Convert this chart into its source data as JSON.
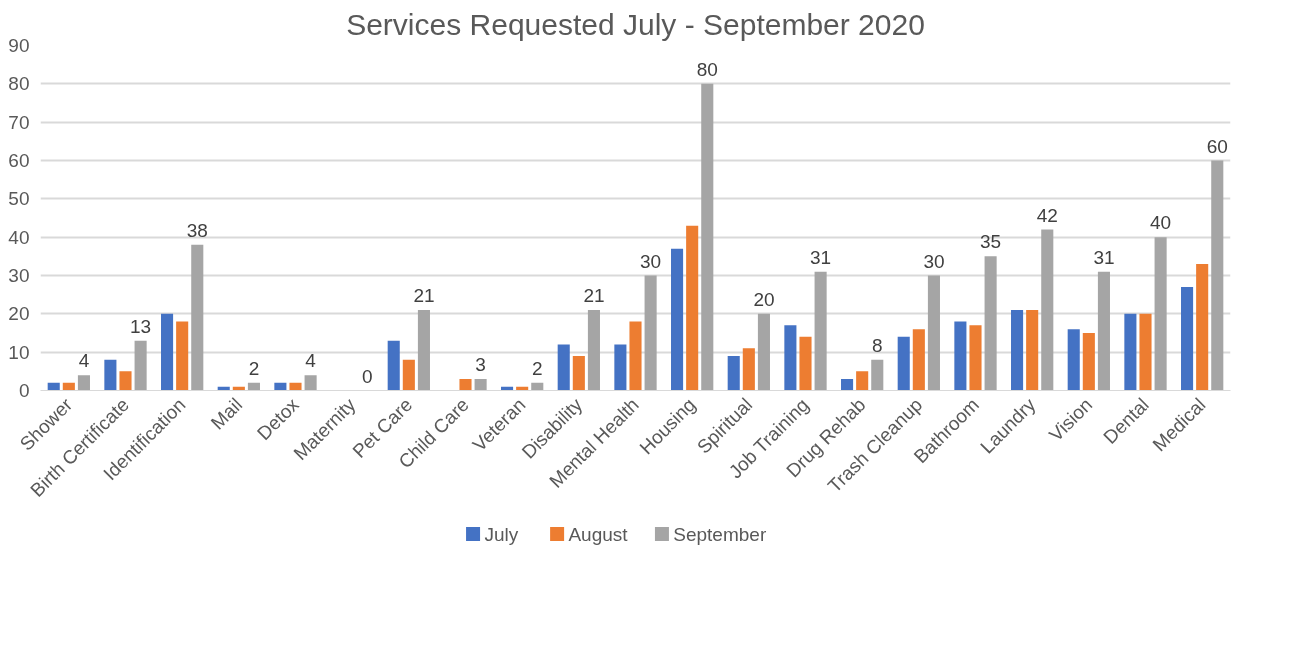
{
  "chart_data": {
    "type": "bar",
    "title": "Services Requested July - September 2020",
    "categories": [
      "Shower",
      "Birth Certificate",
      "Identification",
      "Mail",
      "Detox",
      "Maternity",
      "Pet Care",
      "Child Care",
      "Veteran",
      "Disability",
      "Mental Health",
      "Housing",
      "Spiritual",
      "Job Training",
      "Drug Rehab",
      "Trash Cleanup",
      "Bathroom",
      "Laundry",
      "Vision",
      "Dental",
      "Medical"
    ],
    "series": [
      {
        "name": "July",
        "color": "#4472c4",
        "values": [
          2,
          8,
          20,
          1,
          2,
          0,
          13,
          0,
          1,
          12,
          12,
          37,
          9,
          17,
          3,
          14,
          18,
          21,
          16,
          20,
          27
        ]
      },
      {
        "name": "August",
        "color": "#ed7d31",
        "values": [
          2,
          5,
          18,
          1,
          2,
          0,
          8,
          3,
          1,
          9,
          18,
          43,
          11,
          14,
          5,
          16,
          17,
          21,
          15,
          20,
          33
        ]
      },
      {
        "name": "September",
        "color": "#a5a5a5",
        "values": [
          4,
          13,
          38,
          2,
          4,
          0,
          21,
          3,
          2,
          21,
          30,
          80,
          20,
          31,
          8,
          30,
          35,
          42,
          31,
          40,
          60
        ],
        "value_labels": [
          "4",
          "13",
          "38",
          "2",
          "4",
          "0",
          "21",
          "3",
          "2",
          "21",
          "30",
          "80",
          "20",
          "31",
          "8",
          "30",
          "35",
          "42",
          "31",
          "40",
          "60"
        ]
      }
    ],
    "ylim": [
      0,
      90
    ],
    "yticks": [
      0,
      10,
      20,
      30,
      40,
      50,
      60,
      70,
      80,
      90
    ],
    "grid": "y",
    "legend": "bottom"
  }
}
